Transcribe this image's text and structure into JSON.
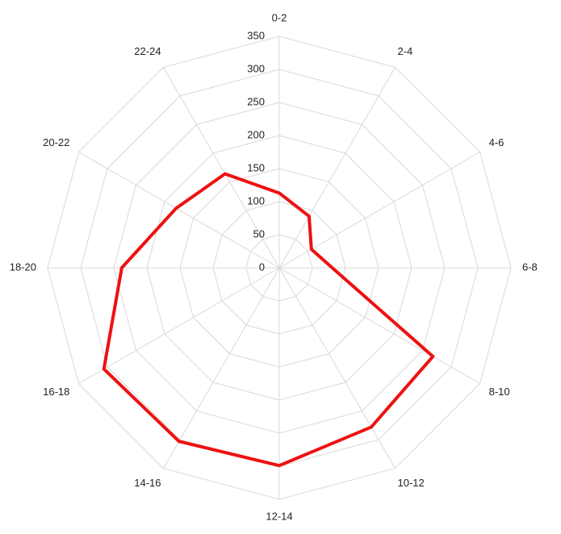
{
  "chart_data": {
    "type": "radar",
    "categories": [
      "0-2",
      "2-4",
      "4-6",
      "6-8",
      "8-10",
      "10-12",
      "12-14",
      "14-16",
      "16-18",
      "18-20",
      "20-22",
      "22-24"
    ],
    "series": [
      {
        "color": "#ee1111",
        "values": [
          113,
          90,
          56,
          80,
          268,
          278,
          299,
          303,
          306,
          238,
          180,
          164
        ]
      }
    ],
    "ylim": [
      0,
      350
    ],
    "yticks": [
      0,
      50,
      100,
      150,
      200,
      250,
      300,
      350
    ],
    "grid": true
  }
}
